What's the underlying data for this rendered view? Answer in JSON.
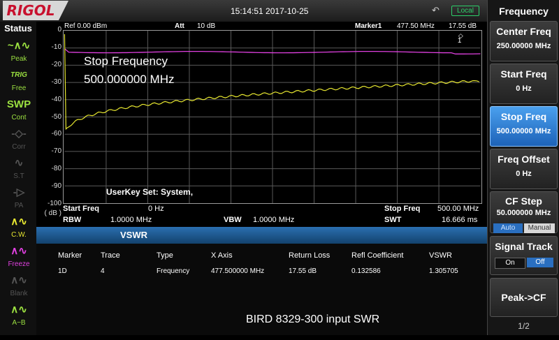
{
  "header": {
    "logo": "RIGOL",
    "datetime": "15:14:51 2017-10-25",
    "usb_icon": "↶",
    "local_label": "Local"
  },
  "status": {
    "title": "Status",
    "items": [
      {
        "icon": "~∧∿",
        "label": "Peak",
        "color": "#9be040"
      },
      {
        "icon": "TRIG",
        "label": "Free",
        "color": "#9be040"
      },
      {
        "icon": "SWP",
        "label": "Cont",
        "color": "#9be040"
      },
      {
        "icon": "-◇-",
        "label": "Corr",
        "color": "#555555"
      },
      {
        "icon": "∿",
        "label": "S.T",
        "color": "#555555"
      },
      {
        "icon": "-▷",
        "label": "PA",
        "color": "#555555"
      },
      {
        "icon": "∧∿",
        "label": "C.W.",
        "color": "#e8e830"
      },
      {
        "icon": "∧∿",
        "label": "Freeze",
        "color": "#e040e0"
      },
      {
        "icon": "∧∿",
        "label": "Blank",
        "color": "#555555"
      },
      {
        "icon": "∧∿",
        "label": "A−B",
        "color": "#9be040"
      }
    ]
  },
  "graph": {
    "ref": "Ref  0.00 dBm",
    "att_label": "Att",
    "att_value": "10 dB",
    "marker_label": "Marker1",
    "marker_freq": "477.50 MHz",
    "marker_level": "17.55 dB",
    "marker_num": "1",
    "y_unit": "( dB )",
    "y_ticks": [
      "0",
      "-10",
      "-20",
      "-30",
      "-40",
      "-50",
      "-60",
      "-70",
      "-80",
      "-90",
      "-100"
    ],
    "message_line1": "Stop Frequency",
    "message_line2": "500.000000 MHz",
    "userkey": "UserKey Set:   System,",
    "start_freq_label": "Start Freq",
    "start_freq_value": "0 Hz",
    "stop_freq_label": "Stop Freq",
    "stop_freq_value": "500.00 MHz",
    "rbw_label": "RBW",
    "rbw_value": "1.0000 MHz",
    "vbw_label": "VBW",
    "vbw_value": "1.0000 MHz",
    "swt_label": "SWT",
    "swt_value": "16.666 ms",
    "trace_colors": {
      "reference": "#e040e0",
      "measured": "#e8e830"
    }
  },
  "vswr": {
    "tab": "VSWR",
    "columns": [
      "Marker",
      "Trace",
      "Type",
      "X Axis",
      "Return Loss",
      "Refl Coefficient",
      "VSWR"
    ],
    "row": [
      "1D",
      "4",
      "Frequency",
      "477.500000 MHz",
      "17.55 dB",
      "0.132586",
      "1.305705"
    ],
    "caption": "BIRD 8329-300 input SWR"
  },
  "menu": {
    "title": "Frequency",
    "keys": [
      {
        "title": "Center Freq",
        "value": "250.00000 MHz"
      },
      {
        "title": "Start Freq",
        "value": "0 Hz"
      },
      {
        "title": "Stop Freq",
        "value": "500.00000 MHz"
      },
      {
        "title": "Freq Offset",
        "value": "0 Hz"
      },
      {
        "title": "CF Step",
        "value": "50.000000 MHz",
        "toggle": [
          "Auto",
          "Manual"
        ]
      },
      {
        "title": "Signal Track",
        "toggle": [
          "On",
          "Off"
        ]
      },
      {
        "title": "Peak->CF"
      }
    ],
    "page": "1/2"
  }
}
